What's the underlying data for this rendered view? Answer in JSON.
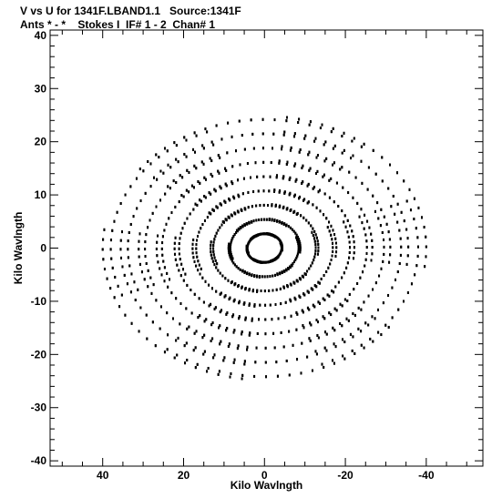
{
  "header": {
    "line1": "V vs U for 1341F.LBAND1.1   Source:1341F",
    "line2": "Ants * - *    Stokes I  IF# 1 - 2  Chan# 1"
  },
  "chart_data": {
    "type": "scatter",
    "title": "V vs U for 1341F.LBAND1.1   Source:1341F",
    "subtitle": "Ants * - *    Stokes I  IF# 1 - 2  Chan# 1",
    "xlabel": "Kilo Wavlngth",
    "ylabel": "Kilo Wavlngth",
    "xlim": [
      53,
      -54
    ],
    "ylim": [
      -41,
      41
    ],
    "x_reversed": true,
    "grid": false,
    "legend": "none",
    "xticks": [
      40,
      20,
      0,
      -20,
      -40
    ],
    "xtick_labels": [
      "40",
      "20",
      "0",
      "-20",
      "-40"
    ],
    "yticks": [
      40,
      30,
      20,
      10,
      0,
      -10,
      -20,
      -30,
      -40
    ],
    "ytick_labels": [
      "40",
      "30",
      "20",
      "10",
      "0",
      "-10",
      "-20",
      "-30",
      "-40"
    ],
    "pattern": {
      "description_free": true,
      "arm_angles_deg": [
        83,
        143,
        203,
        263,
        323,
        23
      ],
      "arm_extents": [
        39,
        40,
        38,
        39,
        40,
        38
      ],
      "tracks_per_arm": 9,
      "samples_per_track": 22,
      "hour_angle_span_deg": 90,
      "declination_factor": 0.62
    },
    "marker_color": "#000000"
  }
}
